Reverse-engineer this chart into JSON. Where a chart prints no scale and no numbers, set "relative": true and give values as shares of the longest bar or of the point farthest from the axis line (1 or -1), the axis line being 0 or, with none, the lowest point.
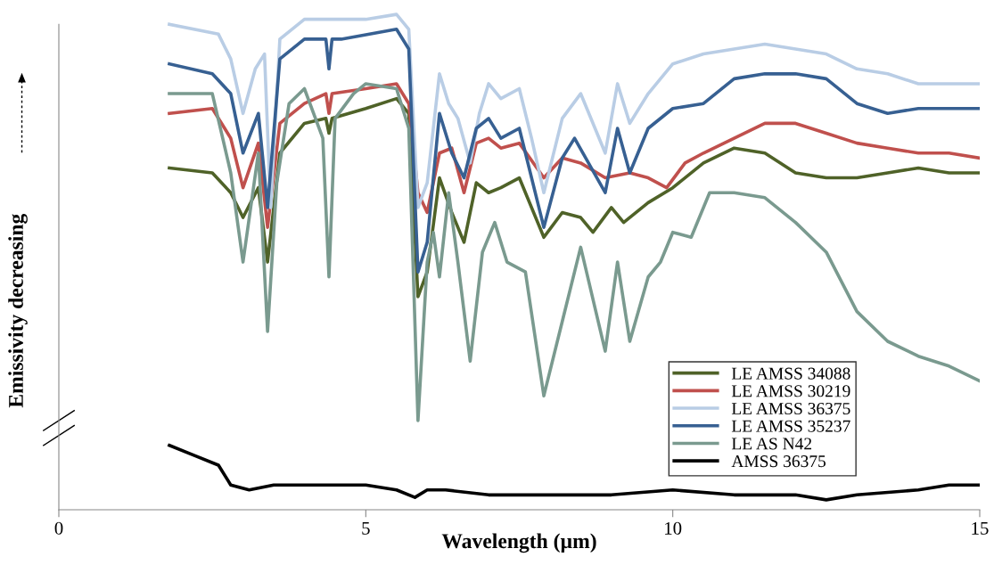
{
  "chart_data": {
    "type": "line",
    "relative": true,
    "xlabel": "Wavelength (µm)",
    "ylabel": "Emissivity decreasing",
    "xlim": [
      0,
      15
    ],
    "xticks": [
      0,
      5,
      10,
      15
    ],
    "grid": false,
    "legend": "lower right",
    "line_style": "solid",
    "marker": "none",
    "series": [
      {
        "name": "LE AMSS 34088",
        "color": "#4f6228",
        "x": [
          1.8,
          2.5,
          2.8,
          3.0,
          3.25,
          3.4,
          3.6,
          4.0,
          4.35,
          4.4,
          4.45,
          5,
          5.5,
          5.7,
          5.85,
          6.0,
          6.2,
          6.4,
          6.6,
          6.8,
          7.0,
          7.2,
          7.5,
          7.9,
          8.2,
          8.5,
          8.7,
          9.0,
          9.2,
          9.6,
          10,
          10.5,
          11,
          11.5,
          12,
          12.5,
          13,
          13.5,
          14,
          14.5,
          15
        ],
        "values": [
          0.69,
          0.68,
          0.64,
          0.59,
          0.65,
          0.5,
          0.72,
          0.78,
          0.79,
          0.76,
          0.79,
          0.81,
          0.83,
          0.8,
          0.43,
          0.48,
          0.67,
          0.6,
          0.54,
          0.66,
          0.64,
          0.65,
          0.67,
          0.55,
          0.6,
          0.59,
          0.56,
          0.61,
          0.58,
          0.62,
          0.65,
          0.7,
          0.73,
          0.72,
          0.68,
          0.67,
          0.67,
          0.68,
          0.69,
          0.68,
          0.68
        ]
      },
      {
        "name": "LE AMSS 30219",
        "color": "#c0504d",
        "x": [
          1.8,
          2.5,
          2.8,
          3.0,
          3.25,
          3.4,
          3.6,
          4.0,
          4.35,
          4.4,
          4.45,
          5,
          5.5,
          5.7,
          5.85,
          6.0,
          6.2,
          6.4,
          6.6,
          6.8,
          7.0,
          7.2,
          7.5,
          7.9,
          8.2,
          8.5,
          8.9,
          9.3,
          9.6,
          9.9,
          10.2,
          10.5,
          11,
          11.5,
          12,
          12.5,
          13,
          13.5,
          14,
          14.5,
          15
        ],
        "values": [
          0.8,
          0.81,
          0.75,
          0.65,
          0.74,
          0.57,
          0.78,
          0.82,
          0.84,
          0.8,
          0.84,
          0.85,
          0.86,
          0.82,
          0.64,
          0.6,
          0.72,
          0.73,
          0.64,
          0.74,
          0.75,
          0.73,
          0.74,
          0.67,
          0.71,
          0.7,
          0.67,
          0.68,
          0.67,
          0.65,
          0.7,
          0.72,
          0.75,
          0.78,
          0.78,
          0.76,
          0.74,
          0.73,
          0.72,
          0.72,
          0.71
        ]
      },
      {
        "name": "LE AMSS 36375",
        "color": "#b9cde5",
        "x": [
          1.8,
          2.6,
          2.8,
          3.0,
          3.2,
          3.35,
          3.45,
          3.6,
          4,
          5,
          5.5,
          5.7,
          5.85,
          6.0,
          6.2,
          6.35,
          6.5,
          6.7,
          6.85,
          7.0,
          7.2,
          7.5,
          7.7,
          7.9,
          8.2,
          8.5,
          8.9,
          9.1,
          9.3,
          9.6,
          10,
          10.5,
          11,
          11.5,
          12,
          12.5,
          13,
          13.5,
          14,
          14.5,
          15
        ],
        "values": [
          0.98,
          0.96,
          0.91,
          0.8,
          0.89,
          0.92,
          0.61,
          0.95,
          0.99,
          0.99,
          1.0,
          0.97,
          0.61,
          0.66,
          0.88,
          0.82,
          0.79,
          0.7,
          0.8,
          0.86,
          0.83,
          0.85,
          0.75,
          0.64,
          0.79,
          0.84,
          0.72,
          0.86,
          0.78,
          0.84,
          0.9,
          0.92,
          0.93,
          0.94,
          0.93,
          0.92,
          0.89,
          0.88,
          0.86,
          0.86,
          0.86
        ]
      },
      {
        "name": "LE AMSS 35237",
        "color": "#376092",
        "x": [
          1.8,
          2.5,
          2.8,
          3.0,
          3.25,
          3.4,
          3.6,
          4.0,
          4.35,
          4.4,
          4.45,
          4.6,
          5.5,
          5.7,
          5.85,
          6.0,
          6.2,
          6.4,
          6.6,
          6.8,
          7.0,
          7.2,
          7.5,
          7.9,
          8.2,
          8.4,
          8.9,
          9.1,
          9.3,
          9.6,
          10,
          10.5,
          11,
          11.5,
          12,
          12.5,
          13,
          13.5,
          14,
          14.5,
          15
        ],
        "values": [
          0.9,
          0.88,
          0.84,
          0.72,
          0.8,
          0.61,
          0.91,
          0.95,
          0.95,
          0.89,
          0.95,
          0.95,
          0.97,
          0.93,
          0.48,
          0.54,
          0.8,
          0.72,
          0.67,
          0.77,
          0.79,
          0.75,
          0.77,
          0.57,
          0.71,
          0.75,
          0.64,
          0.77,
          0.68,
          0.77,
          0.81,
          0.82,
          0.87,
          0.88,
          0.88,
          0.87,
          0.82,
          0.8,
          0.81,
          0.81,
          0.81
        ]
      },
      {
        "name": "LE AS N42",
        "color": "#7a9a8f",
        "x": [
          1.8,
          2.5,
          2.8,
          3.0,
          3.25,
          3.4,
          3.55,
          3.75,
          4.0,
          4.3,
          4.4,
          4.5,
          4.8,
          5.0,
          5.5,
          5.7,
          5.85,
          6.0,
          6.1,
          6.2,
          6.35,
          6.5,
          6.7,
          6.9,
          7.1,
          7.3,
          7.6,
          7.9,
          8.2,
          8.5,
          8.9,
          9.1,
          9.3,
          9.6,
          9.8,
          10,
          10.3,
          10.6,
          11,
          11.5,
          12,
          12.5,
          13,
          13.5,
          14,
          14.5,
          15
        ],
        "values": [
          0.84,
          0.84,
          0.68,
          0.5,
          0.72,
          0.36,
          0.66,
          0.82,
          0.85,
          0.75,
          0.47,
          0.79,
          0.84,
          0.86,
          0.85,
          0.77,
          0.18,
          0.5,
          0.56,
          0.47,
          0.64,
          0.5,
          0.3,
          0.52,
          0.58,
          0.5,
          0.48,
          0.23,
          0.38,
          0.53,
          0.32,
          0.5,
          0.34,
          0.47,
          0.5,
          0.56,
          0.55,
          0.64,
          0.64,
          0.63,
          0.58,
          0.52,
          0.4,
          0.34,
          0.31,
          0.29,
          0.26
        ]
      },
      {
        "name": "AMSS 36375",
        "color": "#000000",
        "x": [
          1.8,
          2.2,
          2.6,
          2.8,
          3.1,
          3.5,
          4.0,
          5.0,
          5.5,
          5.8,
          6.0,
          6.3,
          7,
          8,
          9,
          10,
          11,
          12,
          12.5,
          13,
          14,
          14.5,
          15
        ],
        "values": [
          0.13,
          0.11,
          0.09,
          0.05,
          0.04,
          0.05,
          0.05,
          0.05,
          0.04,
          0.025,
          0.04,
          0.04,
          0.03,
          0.03,
          0.03,
          0.04,
          0.03,
          0.03,
          0.02,
          0.03,
          0.04,
          0.05,
          0.05
        ]
      }
    ]
  }
}
